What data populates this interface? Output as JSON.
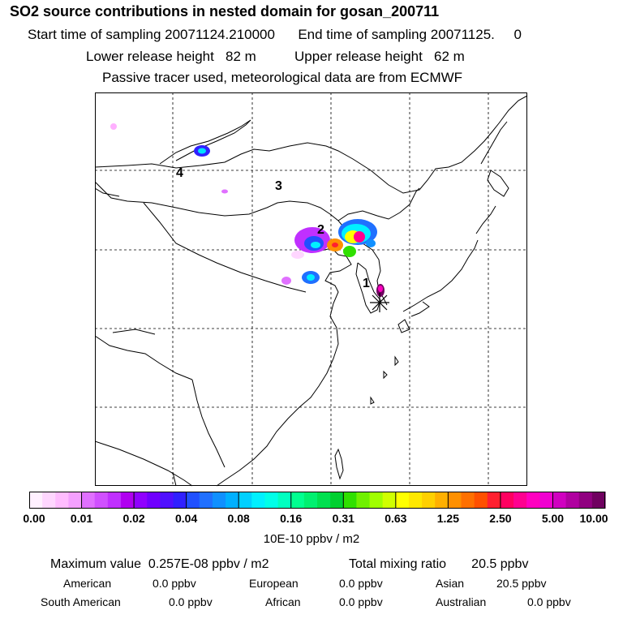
{
  "header": {
    "title": "SO2 source contributions in nested domain for gosan_200711",
    "start_label": "Start time of sampling",
    "start_value": "20071124.210000",
    "end_label": "End time of sampling",
    "end_value": "20071125.     0",
    "lower_label": "Lower release height",
    "lower_value": "82 m",
    "upper_label": "Upper release height",
    "upper_value": "62 m",
    "tracer_note": "Passive tracer used, meteorological data are from ECMWF"
  },
  "map": {
    "region_labels": [
      "1",
      "2",
      "3",
      "4"
    ],
    "receptor_marker": "asterisk-star"
  },
  "colorbar": {
    "ticks": [
      "0.00",
      "0.01",
      "0.02",
      "0.04",
      "0.08",
      "0.16",
      "0.31",
      "0.63",
      "1.25",
      "2.50",
      "5.00",
      "10.00"
    ],
    "units": "10E-10 ppbv / m2",
    "colors": [
      "#fff0ff",
      "#ffd6ff",
      "#ffbcff",
      "#f4a0ff",
      "#e070ff",
      "#d050ff",
      "#c030ff",
      "#b000f0",
      "#9000ff",
      "#7000ff",
      "#5010ff",
      "#3020ff",
      "#2050ff",
      "#2070ff",
      "#1090ff",
      "#00b0ff",
      "#00d0ff",
      "#00f0ff",
      "#00ffe8",
      "#00ffc0",
      "#00ff90",
      "#00f070",
      "#00e050",
      "#00d030",
      "#30e000",
      "#70f000",
      "#a0ff00",
      "#d0ff00",
      "#ffff00",
      "#ffe800",
      "#ffd000",
      "#ffb000",
      "#ff9000",
      "#ff7000",
      "#ff5000",
      "#ff2030",
      "#ff0060",
      "#ff0090",
      "#ff00c0",
      "#f000d0",
      "#d000c0",
      "#b000a0",
      "#900080",
      "#700060"
    ]
  },
  "stats": {
    "max_label": "Maximum value",
    "max_value": "0.257E-08 ppbv / m2",
    "total_label": "Total mixing ratio",
    "total_value": "20.5 ppbv"
  },
  "regions": [
    {
      "name": "American",
      "value": "0.0 ppbv"
    },
    {
      "name": "European",
      "value": "0.0 ppbv"
    },
    {
      "name": "Asian",
      "value": "20.5 ppbv"
    },
    {
      "name": "South American",
      "value": "0.0 ppbv"
    },
    {
      "name": "African",
      "value": "0.0 ppbv"
    },
    {
      "name": "Australian",
      "value": "0.0 ppbv"
    }
  ]
}
